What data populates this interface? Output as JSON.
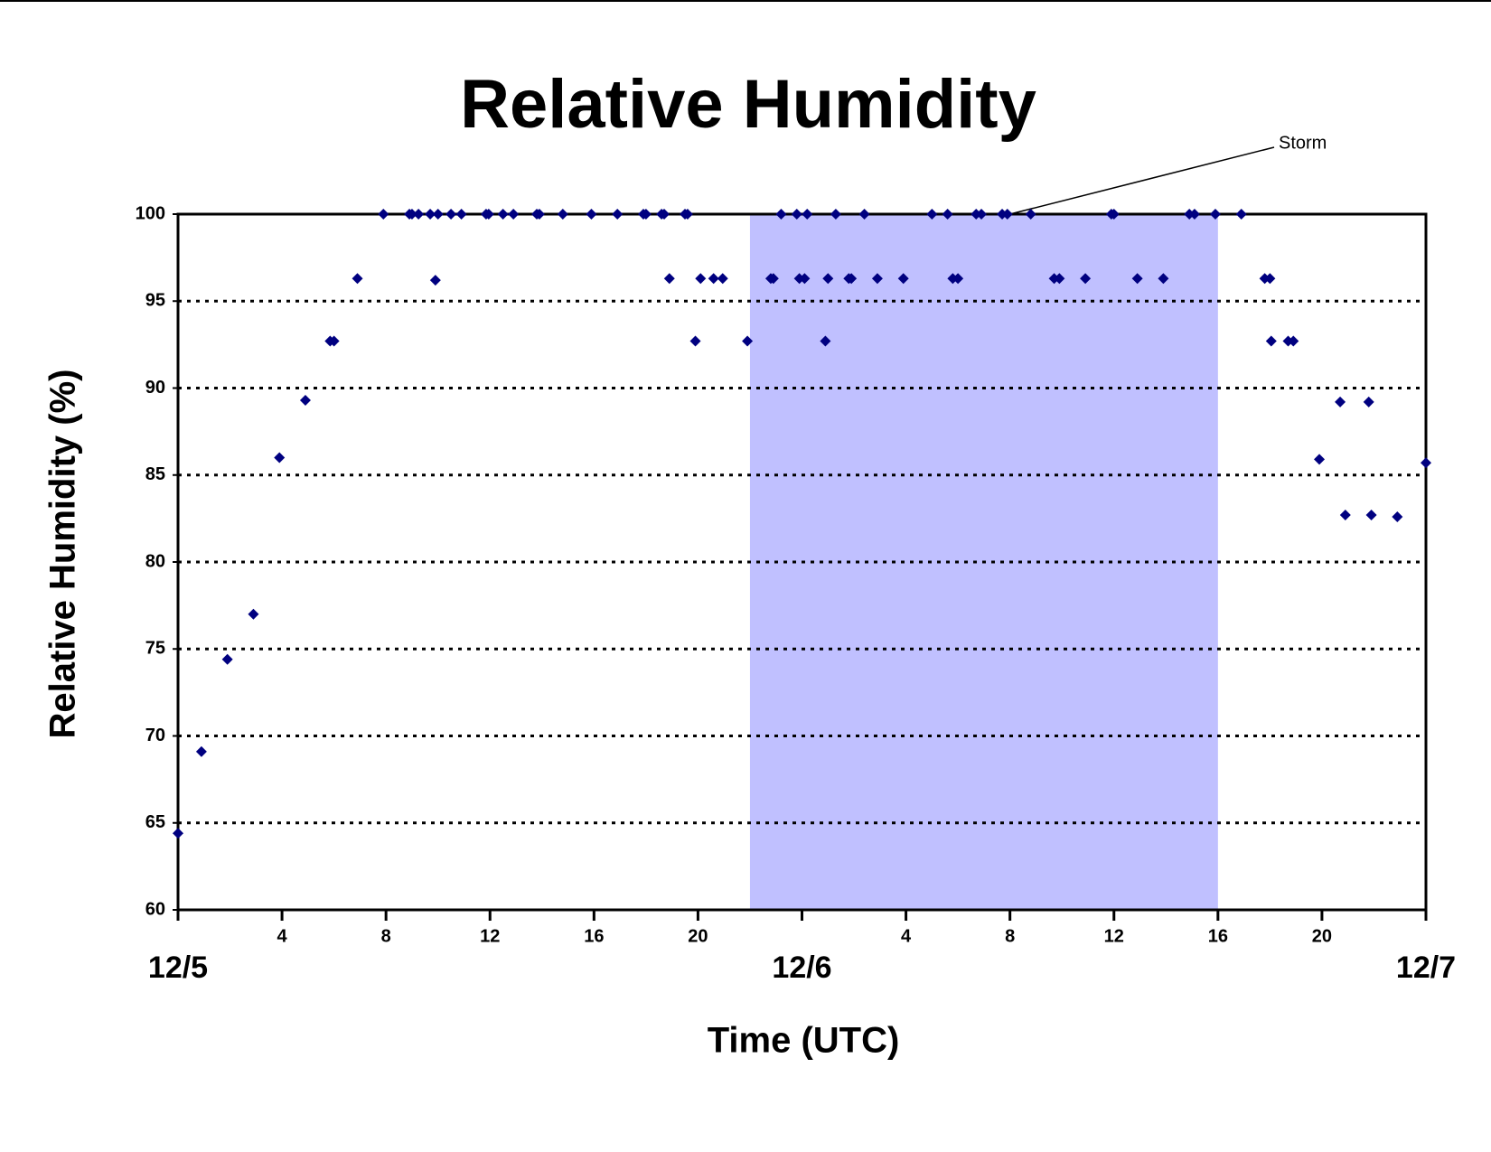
{
  "chart_data": {
    "type": "scatter",
    "title": "Relative Humidity",
    "x_label": "Time (UTC)",
    "y_label": "Relative Humidity (%)",
    "xlim": [
      0,
      48
    ],
    "ylim": [
      60,
      100
    ],
    "xticks": [
      {
        "value": 0,
        "label": "12/5"
      },
      4,
      8,
      12,
      16,
      20,
      {
        "value": 24,
        "label": "12/6"
      },
      {
        "value": 28,
        "label": "4"
      },
      {
        "value": 32,
        "label": "8"
      },
      {
        "value": 36,
        "label": "12"
      },
      {
        "value": 40,
        "label": "16"
      },
      {
        "value": 44,
        "label": "20"
      },
      {
        "value": 48,
        "label": "12/7"
      }
    ],
    "yticks": [
      60,
      65,
      70,
      75,
      80,
      85,
      90,
      95,
      100
    ],
    "grid": true,
    "shaded_region": {
      "x": [
        22,
        40
      ],
      "color": "#c0c0ff"
    },
    "annotation": {
      "text": "Storm",
      "x": 32,
      "y": 100
    },
    "series": [
      {
        "color": "#000080",
        "x": [
          0,
          0.9,
          1.9,
          2.9,
          3.9,
          4.9,
          5.85,
          6.0,
          6.9,
          7.9,
          8.9,
          9.0,
          9.25,
          9.7,
          9.9,
          10.0,
          10.5,
          10.9,
          11.85,
          11.95,
          12.5,
          12.9,
          13.8,
          13.9,
          14.8,
          15.9,
          16.9,
          17.9,
          18.0,
          18.6,
          18.7,
          18.9,
          19.5,
          19.6,
          19.9,
          20.1,
          20.6,
          20.95,
          21.9,
          22.8,
          22.9,
          23.2,
          23.8,
          23.9,
          24.1,
          24.2,
          24.9,
          25.0,
          25.3,
          25.8,
          25.9,
          26.4,
          26.9,
          27.9,
          29.0,
          29.6,
          29.8,
          30.0,
          30.7,
          30.9,
          31.7,
          31.9,
          32.8,
          33.7,
          33.9,
          34.9,
          35.9,
          36.0,
          36.9,
          37.9,
          38.9,
          39.1,
          39.9,
          40.9,
          41.8,
          42.0,
          42.05,
          42.7,
          42.9,
          43.9,
          44.7,
          44.9,
          45.8,
          45.9,
          46.9,
          48.0
        ],
        "values": [
          64.4,
          69.1,
          74.4,
          77.0,
          86.0,
          89.3,
          92.7,
          92.7,
          96.3,
          100,
          100,
          100,
          100,
          100,
          96.2,
          100,
          100,
          100,
          100,
          100,
          100,
          100,
          100,
          100,
          100,
          100,
          100,
          100,
          100,
          100,
          100,
          96.3,
          100,
          100,
          92.7,
          96.3,
          96.3,
          96.3,
          92.7,
          96.3,
          96.3,
          100,
          100,
          96.3,
          96.3,
          100,
          92.7,
          96.3,
          100,
          96.3,
          96.3,
          100,
          96.3,
          96.3,
          100,
          100,
          96.3,
          96.3,
          100,
          100,
          100,
          100,
          100,
          96.3,
          96.3,
          96.3,
          100,
          100,
          96.3,
          96.3,
          100,
          100,
          100,
          100,
          96.3,
          96.3,
          92.7,
          92.7,
          92.7,
          85.9,
          89.2,
          82.7,
          89.2,
          82.7,
          82.6,
          85.7
        ]
      }
    ]
  }
}
